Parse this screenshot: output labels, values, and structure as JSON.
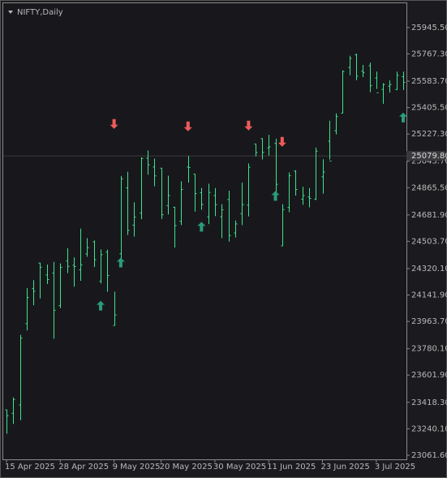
{
  "chart_data": {
    "type": "ohlc",
    "title": "NIFTY,Daily",
    "color": "#3ee38c",
    "categories": [
      "15 Apr 2025",
      null,
      null,
      null,
      null,
      null,
      null,
      null,
      "28 Apr 2025",
      null,
      null,
      null,
      null,
      null,
      null,
      null,
      "9 May 2025",
      null,
      null,
      null,
      null,
      null,
      null,
      "20 May 2025",
      null,
      null,
      null,
      null,
      null,
      null,
      null,
      "30 May 2025",
      null,
      null,
      null,
      null,
      null,
      null,
      null,
      "11 Jun 2025",
      null,
      null,
      null,
      null,
      null,
      null,
      null,
      "23 Jun 2025",
      null,
      null,
      null,
      null,
      null,
      null,
      null,
      "3 Jul 2025",
      null,
      null,
      null,
      null
    ],
    "open": [
      23368,
      23344,
      23401,
      23949,
      24185,
      24357,
      24277,
      24290,
      24070,
      24371,
      24342,
      24311,
      24419,
      24500,
      24234,
      24431,
      23936,
      24420,
      24864,
      24613,
      24694,
      25064,
      25005,
      24997,
      24745,
      24733,
      24639,
      25005,
      24957,
      24832,
      24669,
      24812,
      24670,
      24786,
      24560,
      24691,
      24748,
      25160,
      25196,
      25134,
      25164,
      24473,
      24732,
      24977,
      24788,
      24803,
      24787,
      24939,
      25179,
      25250,
      25368,
      25676,
      25761,
      25651,
      25688,
      25605,
      25528,
      25550,
      25527,
      25614
    ],
    "high": [
      23368,
      23452,
      23873,
      24189,
      24242,
      24359,
      24347,
      24365,
      24355,
      24457,
      24396,
      24589,
      24526,
      24509,
      24449,
      24448,
      24164,
      24944,
      24973,
      24767,
      25070,
      25116,
      25062,
      24997,
      24946,
      24737,
      24909,
      25079,
      24958,
      24864,
      24892,
      24863,
      24754,
      24845,
      24644,
      24899,
      25029,
      25160,
      25199,
      25222,
      25196,
      24754,
      24968,
      24983,
      24872,
      24863,
      25136,
      25057,
      25317,
      25366,
      25656,
      25755,
      25769,
      25693,
      25708,
      25648,
      25570,
      25589,
      25648,
      25648
    ],
    "low": [
      23207,
      23273,
      23298,
      23903,
      24073,
      24119,
      24216,
      23847,
      24054,
      24290,
      24198,
      24238,
      24400,
      24331,
      24220,
      24164,
      23936,
      24378,
      24547,
      24536,
      24653,
      24953,
      24875,
      24654,
      24685,
      24462,
      24614,
      24900,
      24704,
      24717,
      24620,
      24674,
      24526,
      24502,
      24530,
      24613,
      24672,
      25077,
      25056,
      25082,
      24825,
      24473,
      24700,
      24812,
      24750,
      24733,
      24783,
      24825,
      25056,
      25225,
      25366,
      25624,
      25590,
      25611,
      25509,
      25531,
      25431,
      25507,
      25524,
      25524
    ],
    "close": [
      23328,
      23437,
      23851,
      24125,
      24167,
      24329,
      24246,
      24039,
      24328,
      24335,
      24334,
      24346,
      24461,
      24380,
      24414,
      24273,
      24008,
      24925,
      24578,
      24667,
      25062,
      25020,
      24945,
      24683,
      24813,
      24610,
      24853,
      25001,
      24826,
      24752,
      24833,
      24751,
      24716,
      24543,
      24621,
      24751,
      25003,
      25103,
      25104,
      25141,
      24888,
      24718,
      24946,
      24853,
      24812,
      24793,
      25112,
      24971,
      25045,
      25345,
      25649,
      25737,
      25617,
      25642,
      25553,
      25505,
      25561,
      25561,
      25623,
      25576
    ],
    "buy_signals": [
      {
        "bar": 14,
        "value": 24070
      },
      {
        "bar": 17,
        "value": 24361
      },
      {
        "bar": 29,
        "value": 24602
      },
      {
        "bar": 40,
        "value": 24810
      },
      {
        "bar": 59,
        "value": 25339
      }
    ],
    "sell_signals": [
      {
        "bar": 16,
        "value": 25295
      },
      {
        "bar": 27,
        "value": 25279
      },
      {
        "bar": 36,
        "value": 25284
      },
      {
        "bar": 41,
        "value": 25175
      }
    ],
    "buy_color": "#2a9d78",
    "sell_color": "#ef5b5b",
    "current_price": {
      "value": 25079.8,
      "label": "25079.80"
    },
    "ylim": [
      23034,
      26109
    ],
    "yticks": [
      {
        "value": 25945.5,
        "label": "25945.50"
      },
      {
        "value": 25767.3,
        "label": "25767.30"
      },
      {
        "value": 25583.7,
        "label": "25583.70"
      },
      {
        "value": 25405.5,
        "label": "25405.50"
      },
      {
        "value": 25227.3,
        "label": "25227.30"
      },
      {
        "value": 25043.7,
        "label": "25043.70"
      },
      {
        "value": 24865.5,
        "label": "24865.50"
      },
      {
        "value": 24681.9,
        "label": "24681.90"
      },
      {
        "value": 24503.7,
        "label": "24503.70"
      },
      {
        "value": 24320.1,
        "label": "24320.10"
      },
      {
        "value": 24141.9,
        "label": "24141.90"
      },
      {
        "value": 23963.7,
        "label": "23963.70"
      },
      {
        "value": 23780.1,
        "label": "23780.10"
      },
      {
        "value": 23601.9,
        "label": "23601.90"
      },
      {
        "value": 23418.3,
        "label": "23418.30"
      },
      {
        "value": 23240.1,
        "label": "23240.10"
      },
      {
        "value": 23061.6,
        "label": "23061.60"
      }
    ]
  }
}
